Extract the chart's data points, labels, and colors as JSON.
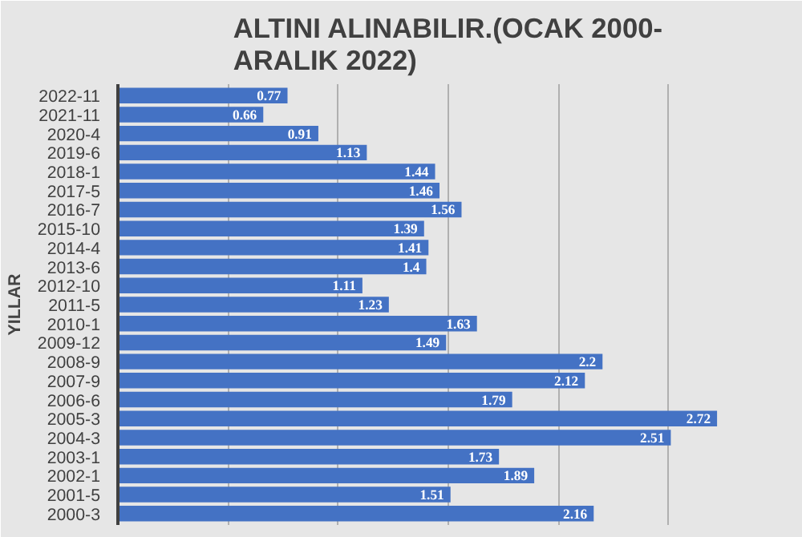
{
  "chart_data": {
    "type": "bar",
    "orientation": "horizontal",
    "title": "ALTINI ALINABILIR.(OCAK 2000-\nARALIK 2022)",
    "ylabel": "YILLAR",
    "categories": [
      "2022-11",
      "2021-11",
      "2020-4",
      "2019-6",
      "2018-1",
      "2017-5",
      "2016-7",
      "2015-10",
      "2014-4",
      "2013-6",
      "2012-10",
      "2011-5",
      "2010-1",
      "2009-12",
      "2008-9",
      "2007-9",
      "2006-6",
      "2005-3",
      "2004-3",
      "2003-1",
      "2002-1",
      "2001-5",
      "2000-3"
    ],
    "values": [
      0.77,
      0.66,
      0.91,
      1.13,
      1.44,
      1.46,
      1.56,
      1.39,
      1.41,
      1.4,
      1.11,
      1.23,
      1.63,
      1.49,
      2.2,
      2.12,
      1.79,
      2.72,
      2.51,
      1.73,
      1.89,
      1.51,
      2.16
    ],
    "color": "#4472c4",
    "data_labels": true,
    "xlim": [
      0,
      3
    ],
    "xticks": [
      {
        "value": 0,
        "label": null
      },
      {
        "value": 0.5,
        "label": null
      },
      {
        "value": 1,
        "label": null
      },
      {
        "value": 1.5,
        "label": null
      },
      {
        "value": 2,
        "label": null
      },
      {
        "value": 2.5,
        "label": null
      },
      {
        "value": 3,
        "label": null
      }
    ],
    "tick_labels": "y",
    "grid": "x"
  }
}
